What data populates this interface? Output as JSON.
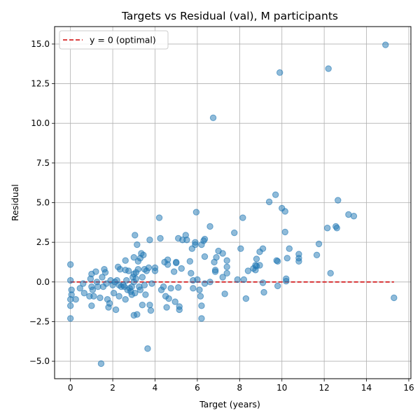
{
  "chart_data": {
    "type": "scatter",
    "title": "Targets vs Residual (val), M participants",
    "xlabel": "Target (years)",
    "ylabel": "Residual",
    "xlim": [
      -0.75,
      16.1
    ],
    "ylim": [
      -6.1,
      16.1
    ],
    "xticks": [
      0,
      2,
      4,
      6,
      8,
      10,
      12,
      14,
      16
    ],
    "xtick_labels": [
      "0",
      "2",
      "4",
      "6",
      "8",
      "10",
      "12",
      "14",
      "16"
    ],
    "yticks": [
      -5.0,
      -2.5,
      0.0,
      2.5,
      5.0,
      7.5,
      10.0,
      12.5,
      15.0
    ],
    "ytick_labels": [
      "−5.0",
      "−2.5",
      "0.0",
      "2.5",
      "5.0",
      "7.5",
      "10.0",
      "12.5",
      "15.0"
    ],
    "grid": true,
    "legend": {
      "placement": "upper-left",
      "entries": [
        {
          "label": "y = 0 (optimal)",
          "color": "#d62728",
          "style": "dashed"
        }
      ]
    },
    "reference_line": {
      "y": 0,
      "x_range": [
        0,
        15.3
      ],
      "color": "#d62728"
    },
    "point_color": "#1f77b4",
    "series": [
      {
        "points": [
          [
            0.0,
            1.1
          ],
          [
            0.0,
            0.1
          ],
          [
            0.05,
            -0.5
          ],
          [
            0.05,
            -0.8
          ],
          [
            0.0,
            -1.1
          ],
          [
            0.0,
            -1.5
          ],
          [
            0.0,
            -2.3
          ],
          [
            0.25,
            -1.1
          ],
          [
            0.45,
            -0.4
          ],
          [
            0.6,
            -0.1
          ],
          [
            0.65,
            -0.7
          ],
          [
            0.9,
            -0.9
          ],
          [
            0.95,
            0.2
          ],
          [
            1.0,
            0.5
          ],
          [
            1.0,
            -0.3
          ],
          [
            1.0,
            -1.5
          ],
          [
            1.05,
            -0.5
          ],
          [
            1.1,
            -0.9
          ],
          [
            1.2,
            0.65
          ],
          [
            1.25,
            0.0
          ],
          [
            1.3,
            -0.3
          ],
          [
            1.4,
            -1.0
          ],
          [
            1.45,
            -5.15
          ],
          [
            1.5,
            0.3
          ],
          [
            1.55,
            -0.3
          ],
          [
            1.6,
            0.8
          ],
          [
            1.65,
            0.6
          ],
          [
            1.7,
            -0.1
          ],
          [
            1.75,
            -1.1
          ],
          [
            1.8,
            -1.6
          ],
          [
            1.85,
            -1.35
          ],
          [
            1.9,
            0.1
          ],
          [
            2.0,
            -0.2
          ],
          [
            2.05,
            -0.7
          ],
          [
            2.1,
            0.0
          ],
          [
            2.15,
            -1.75
          ],
          [
            2.2,
            0.1
          ],
          [
            2.25,
            0.95
          ],
          [
            2.3,
            -0.2
          ],
          [
            2.3,
            -0.9
          ],
          [
            2.35,
            0.8
          ],
          [
            2.4,
            -0.3
          ],
          [
            2.5,
            -0.2
          ],
          [
            2.55,
            -0.3
          ],
          [
            2.6,
            1.35
          ],
          [
            2.6,
            0.75
          ],
          [
            2.65,
            0.1
          ],
          [
            2.6,
            -1.1
          ],
          [
            2.7,
            -0.5
          ],
          [
            2.75,
            0.7
          ],
          [
            2.8,
            -0.4
          ],
          [
            2.85,
            -0.6
          ],
          [
            2.9,
            -0.3
          ],
          [
            2.9,
            -0.8
          ],
          [
            2.95,
            0.3
          ],
          [
            3.0,
            0.5
          ],
          [
            3.0,
            1.55
          ],
          [
            3.0,
            0.0
          ],
          [
            3.05,
            2.95
          ],
          [
            3.05,
            -0.7
          ],
          [
            3.0,
            -2.1
          ],
          [
            3.1,
            0.6
          ],
          [
            3.1,
            0.2
          ],
          [
            3.15,
            2.35
          ],
          [
            3.15,
            -2.05
          ],
          [
            3.2,
            0.8
          ],
          [
            3.2,
            1.3
          ],
          [
            3.25,
            -0.3
          ],
          [
            3.3,
            1.5
          ],
          [
            3.3,
            -0.5
          ],
          [
            3.35,
            1.8
          ],
          [
            3.4,
            0.3
          ],
          [
            3.4,
            -1.45
          ],
          [
            3.45,
            1.7
          ],
          [
            3.5,
            0.8
          ],
          [
            3.5,
            -0.2
          ],
          [
            3.55,
            -0.8
          ],
          [
            3.6,
            0.7
          ],
          [
            3.65,
            -4.2
          ],
          [
            3.7,
            0.9
          ],
          [
            3.75,
            2.65
          ],
          [
            3.75,
            -1.45
          ],
          [
            3.8,
            -1.8
          ],
          [
            3.85,
            -0.1
          ],
          [
            4.0,
            0.9
          ],
          [
            4.0,
            0.7
          ],
          [
            4.2,
            4.05
          ],
          [
            4.25,
            2.75
          ],
          [
            4.3,
            -0.5
          ],
          [
            4.4,
            -0.3
          ],
          [
            4.45,
            1.25
          ],
          [
            4.5,
            -0.9
          ],
          [
            4.55,
            -1.6
          ],
          [
            4.6,
            1.4
          ],
          [
            4.6,
            1.1
          ],
          [
            4.65,
            -1.05
          ],
          [
            4.75,
            -0.4
          ],
          [
            4.9,
            0.65
          ],
          [
            5.0,
            1.2
          ],
          [
            5.0,
            1.25
          ],
          [
            4.95,
            -1.25
          ],
          [
            5.1,
            2.75
          ],
          [
            5.1,
            -0.35
          ],
          [
            5.15,
            -1.75
          ],
          [
            5.15,
            -1.55
          ],
          [
            5.25,
            0.85
          ],
          [
            5.3,
            2.65
          ],
          [
            5.45,
            2.95
          ],
          [
            5.5,
            2.65
          ],
          [
            5.65,
            1.3
          ],
          [
            5.7,
            0.55
          ],
          [
            5.75,
            2.1
          ],
          [
            5.8,
            0.1
          ],
          [
            5.8,
            -0.4
          ],
          [
            5.9,
            2.5
          ],
          [
            5.9,
            2.35
          ],
          [
            5.95,
            4.4
          ],
          [
            6.0,
            0.15
          ],
          [
            6.1,
            -0.5
          ],
          [
            6.15,
            -0.9
          ],
          [
            6.2,
            2.35
          ],
          [
            6.2,
            -1.5
          ],
          [
            6.2,
            -2.3
          ],
          [
            6.3,
            2.6
          ],
          [
            6.35,
            2.7
          ],
          [
            6.35,
            1.6
          ],
          [
            6.35,
            -0.1
          ],
          [
            6.6,
            3.5
          ],
          [
            6.6,
            0.0
          ],
          [
            6.75,
            10.35
          ],
          [
            6.8,
            1.25
          ],
          [
            6.85,
            0.75
          ],
          [
            6.85,
            0.65
          ],
          [
            6.9,
            1.55
          ],
          [
            7.0,
            1.95
          ],
          [
            7.2,
            1.8
          ],
          [
            7.2,
            0.3
          ],
          [
            7.3,
            -0.75
          ],
          [
            7.4,
            1.35
          ],
          [
            7.4,
            0.55
          ],
          [
            7.4,
            0.95
          ],
          [
            7.75,
            3.1
          ],
          [
            7.9,
            0.15
          ],
          [
            8.05,
            2.1
          ],
          [
            8.15,
            4.05
          ],
          [
            8.2,
            0.15
          ],
          [
            8.3,
            -1.05
          ],
          [
            8.4,
            0.7
          ],
          [
            8.65,
            0.85
          ],
          [
            8.75,
            0.75
          ],
          [
            8.75,
            1.05
          ],
          [
            8.8,
            1.45
          ],
          [
            8.8,
            1.0
          ],
          [
            8.95,
            1.05
          ],
          [
            8.95,
            1.9
          ],
          [
            9.1,
            2.1
          ],
          [
            9.1,
            -0.05
          ],
          [
            9.15,
            -0.65
          ],
          [
            9.4,
            5.05
          ],
          [
            9.7,
            5.5
          ],
          [
            9.75,
            1.35
          ],
          [
            9.8,
            1.3
          ],
          [
            9.8,
            -0.25
          ],
          [
            9.9,
            13.2
          ],
          [
            10.0,
            4.65
          ],
          [
            10.15,
            3.15
          ],
          [
            10.15,
            4.45
          ],
          [
            10.2,
            0.2
          ],
          [
            10.2,
            0.05
          ],
          [
            10.25,
            1.5
          ],
          [
            10.35,
            2.1
          ],
          [
            10.8,
            1.75
          ],
          [
            10.8,
            1.5
          ],
          [
            10.8,
            1.3
          ],
          [
            11.65,
            1.7
          ],
          [
            11.75,
            2.4
          ],
          [
            12.15,
            3.4
          ],
          [
            12.2,
            13.45
          ],
          [
            12.3,
            0.55
          ],
          [
            12.55,
            3.5
          ],
          [
            12.6,
            3.4
          ],
          [
            12.65,
            5.15
          ],
          [
            13.15,
            4.25
          ],
          [
            13.4,
            4.15
          ],
          [
            14.9,
            14.95
          ],
          [
            15.3,
            -1.0
          ]
        ]
      }
    ]
  }
}
